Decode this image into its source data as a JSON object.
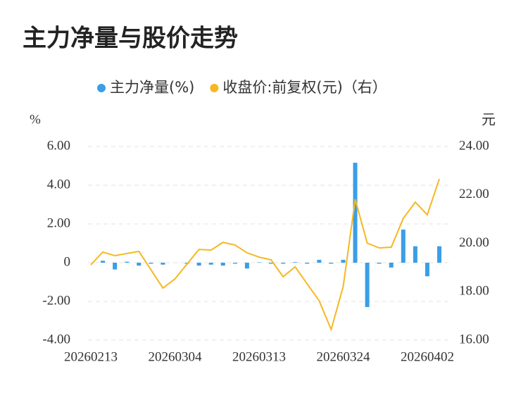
{
  "chart_data": {
    "type": "bar-line",
    "title": "主力净量与股价走势",
    "y_unit": "%",
    "y2_unit": "元",
    "categories": [
      "20260213",
      null,
      null,
      null,
      null,
      null,
      null,
      "20260304",
      null,
      null,
      null,
      null,
      null,
      null,
      "20260313",
      null,
      null,
      null,
      null,
      null,
      null,
      "20260324",
      null,
      null,
      null,
      null,
      null,
      null,
      "20260402",
      null
    ],
    "series": [
      {
        "name": "主力净量(%)",
        "kind": "bar",
        "color": "#3a9ee8",
        "values": [
          0,
          0.1,
          -0.35,
          0.05,
          -0.15,
          -0.05,
          -0.1,
          0,
          -0.05,
          -0.15,
          -0.1,
          -0.15,
          -0.05,
          -0.3,
          0.02,
          -0.05,
          -0.05,
          0.03,
          -0.05,
          0.15,
          -0.05,
          0.15,
          5.16,
          -2.29,
          -0.05,
          -0.25,
          1.71,
          0.85,
          -0.7,
          0.85
        ]
      },
      {
        "name": "收盘价:前复权(元)（右）",
        "kind": "line",
        "axis": "y2",
        "color": "#f5b820",
        "values": [
          19.11,
          19.64,
          19.49,
          19.58,
          19.67,
          18.91,
          18.15,
          18.53,
          19.14,
          19.75,
          19.72,
          20.04,
          19.93,
          19.61,
          19.43,
          19.32,
          18.62,
          19.03,
          18.33,
          17.63,
          16.44,
          18.21,
          21.82,
          20.01,
          19.81,
          19.84,
          21.03,
          21.7,
          21.18,
          22.66
        ]
      }
    ],
    "ylim": [
      -4,
      6
    ],
    "yticks": [
      {
        "value": -4,
        "label": "-4.00"
      },
      {
        "value": -2,
        "label": "-2.00"
      },
      0,
      {
        "value": 2,
        "label": "2.00"
      },
      {
        "value": 4,
        "label": "4.00"
      },
      {
        "value": 6,
        "label": "6.00"
      }
    ],
    "y2lim": [
      16,
      24
    ],
    "y2ticks": [
      {
        "value": 16,
        "label": "16.00"
      },
      {
        "value": 18,
        "label": "18.00"
      },
      {
        "value": 20,
        "label": "20.00"
      },
      {
        "value": 22,
        "label": "22.00"
      },
      {
        "value": 24,
        "label": "24.00"
      }
    ],
    "grid": true
  }
}
